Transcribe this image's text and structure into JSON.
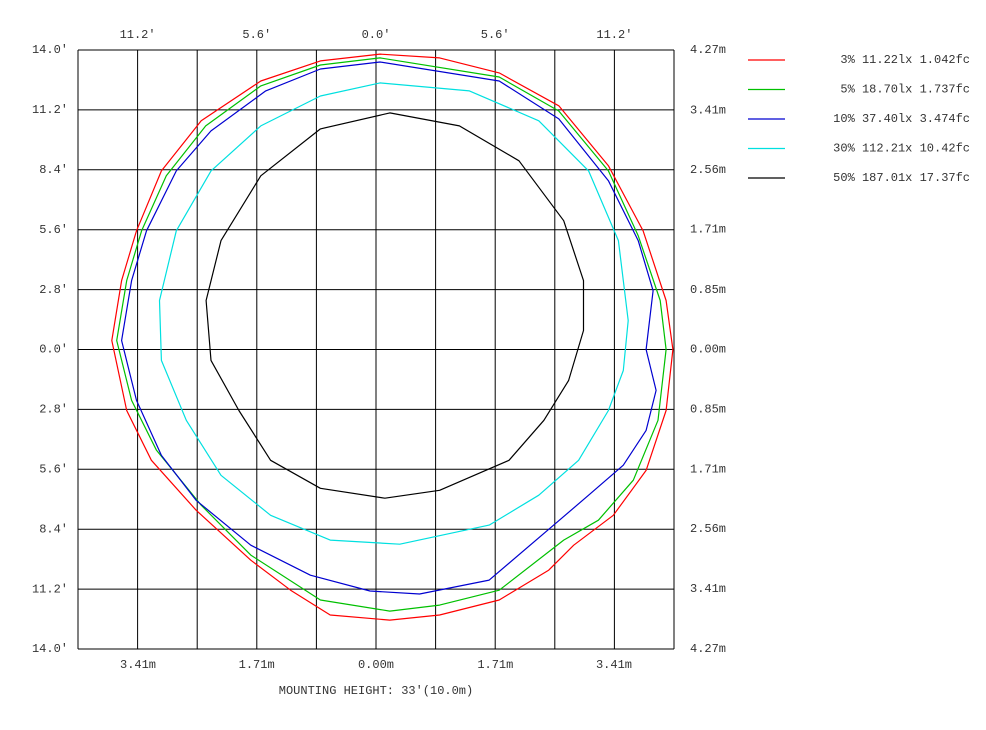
{
  "chart_data": {
    "type": "contour",
    "xlabel": "MOUNTING HEIGHT: 33'(10.0m)",
    "xlim": [
      -14,
      14
    ],
    "ylim": [
      -14,
      14
    ],
    "x2lim": [
      -4.27,
      4.27
    ],
    "y2lim": [
      -4.27,
      4.27
    ],
    "grid": true,
    "legend": "right",
    "xticks": [
      {
        "value": -11.2,
        "label": "11.2'"
      },
      {
        "value": -5.6,
        "label": "5.6'"
      },
      {
        "value": 0,
        "label": "0.0'"
      },
      {
        "value": 5.6,
        "label": "5.6'"
      },
      {
        "value": 11.2,
        "label": "11.2'"
      }
    ],
    "x2ticks": [
      {
        "value": -3.41,
        "label": "3.41m"
      },
      {
        "value": -1.71,
        "label": "1.71m"
      },
      {
        "value": 0,
        "label": "0.00m"
      },
      {
        "value": 1.71,
        "label": "1.71m"
      },
      {
        "value": 3.41,
        "label": "3.41m"
      }
    ],
    "yticks": [
      {
        "value": 14,
        "label": "14.0'"
      },
      {
        "value": 11.2,
        "label": "11.2'"
      },
      {
        "value": 8.4,
        "label": "8.4'"
      },
      {
        "value": 5.6,
        "label": "5.6'"
      },
      {
        "value": 2.8,
        "label": "2.8'"
      },
      {
        "value": 0,
        "label": "0.0'"
      },
      {
        "value": -2.8,
        "label": "2.8'"
      },
      {
        "value": -5.6,
        "label": "5.6'"
      },
      {
        "value": -8.4,
        "label": "8.4'"
      },
      {
        "value": -11.2,
        "label": "11.2'"
      },
      {
        "value": -14,
        "label": "14.0'"
      }
    ],
    "y2ticks": [
      {
        "value": 4.27,
        "label": "4.27m"
      },
      {
        "value": 3.41,
        "label": "3.41m"
      },
      {
        "value": 2.56,
        "label": "2.56m"
      },
      {
        "value": 1.71,
        "label": "1.71m"
      },
      {
        "value": 0.85,
        "label": "0.85m"
      },
      {
        "value": 0,
        "label": "0.00m"
      },
      {
        "value": -0.85,
        "label": "0.85m"
      },
      {
        "value": -1.71,
        "label": "1.71m"
      },
      {
        "value": -2.56,
        "label": "2.56m"
      },
      {
        "value": -3.41,
        "label": "3.41m"
      },
      {
        "value": -4.27,
        "label": "4.27m"
      }
    ],
    "series": [
      {
        "name": "3% 11.22lx 1.042fc",
        "color": "#ff0000",
        "x": [
          0.19,
          2.99,
          5.79,
          8.59,
          10.92,
          12.55,
          13.63,
          13.95,
          13.63,
          12.69,
          11.15,
          9.29,
          8.12,
          5.79,
          2.99,
          0.65,
          -2.15,
          -4.01,
          -5.88,
          -8.45,
          -10.55,
          -11.71,
          -12.41,
          -11.95,
          -11.25,
          -10.08,
          -8.21,
          -5.41,
          -2.61
        ],
        "y": [
          13.81,
          13.63,
          12.93,
          11.39,
          8.59,
          5.55,
          2.29,
          0,
          -2.85,
          -5.65,
          -7.75,
          -9.15,
          -10.31,
          -11.71,
          -12.41,
          -12.65,
          -12.41,
          -11.25,
          -9.85,
          -7.51,
          -5.18,
          -2.85,
          0.42,
          3.22,
          5.55,
          8.35,
          10.69,
          12.55,
          13.49
        ]
      },
      {
        "name": "5% 18.70lx 1.737fc",
        "color": "#00c000",
        "x": [
          0.19,
          5.79,
          8.59,
          10.92,
          12.32,
          13.35,
          13.63,
          13.25,
          12.09,
          10.45,
          8.82,
          5.79,
          2.99,
          0.65,
          -2.61,
          -5.88,
          -8.21,
          -10.31,
          -11.48,
          -12.18,
          -11.71,
          -11.01,
          -9.85,
          -8.0,
          -5.41,
          -2.61
        ],
        "y": [
          13.63,
          12.74,
          11.15,
          8.35,
          5.32,
          2.29,
          0,
          -3.31,
          -6.11,
          -7.98,
          -8.91,
          -11.25,
          -11.95,
          -12.23,
          -11.71,
          -9.61,
          -7.28,
          -4.71,
          -2.38,
          0.42,
          3.22,
          5.55,
          8.12,
          10.45,
          12.32,
          13.3
        ]
      },
      {
        "name": "10% 37.40lx 3.474fc",
        "color": "#0000d0",
        "x": [
          0.19,
          5.79,
          8.59,
          10.92,
          12.32,
          13.02,
          12.69,
          13.16,
          12.69,
          11.62,
          9.99,
          8.35,
          5.32,
          2.05,
          -0.28,
          -3.08,
          -5.88,
          -8.45,
          -10.08,
          -11.25,
          -11.95,
          -11.48,
          -10.78,
          -9.38,
          -7.75,
          -5.18,
          -2.61
        ],
        "y": [
          13.44,
          12.55,
          10.78,
          7.89,
          5.09,
          2.75,
          0,
          -1.91,
          -3.78,
          -5.41,
          -6.81,
          -8.21,
          -10.78,
          -11.43,
          -11.29,
          -10.55,
          -9.15,
          -7.05,
          -4.95,
          -2.38,
          0.42,
          3.22,
          5.55,
          8.35,
          10.22,
          12.09,
          13.11
        ]
      },
      {
        "name": "30% 112.21x 10.42fc",
        "color": "#00e0e0",
        "x": [
          0.19,
          4.39,
          7.65,
          9.99,
          11.39,
          11.85,
          11.62,
          10.92,
          9.52,
          7.65,
          5.32,
          1.12,
          -2.15,
          -4.95,
          -7.28,
          -8.91,
          -10.08,
          -10.17,
          -9.38,
          -7.75,
          -5.41,
          -2.61
        ],
        "y": [
          12.46,
          12.09,
          10.69,
          8.35,
          5.09,
          1.35,
          -0.98,
          -2.85,
          -5.18,
          -6.81,
          -8.21,
          -9.1,
          -8.91,
          -7.75,
          -5.88,
          -3.31,
          -0.51,
          2.29,
          5.55,
          8.35,
          10.45,
          11.85
        ]
      },
      {
        "name": "50% 187.01x 17.37fc",
        "color": "#000000",
        "x": [
          0.65,
          3.92,
          6.72,
          8.82,
          9.75,
          9.75,
          9.05,
          7.89,
          6.25,
          2.99,
          0.42,
          -2.61,
          -4.95,
          -6.44,
          -7.75,
          -7.98,
          -7.28,
          -5.41,
          -2.61
        ],
        "y": [
          11.06,
          10.45,
          8.82,
          6.02,
          3.22,
          0.89,
          -1.45,
          -3.31,
          -5.18,
          -6.58,
          -6.95,
          -6.49,
          -5.18,
          -2.85,
          -0.51,
          2.29,
          5.09,
          8.12,
          10.31
        ]
      }
    ]
  }
}
